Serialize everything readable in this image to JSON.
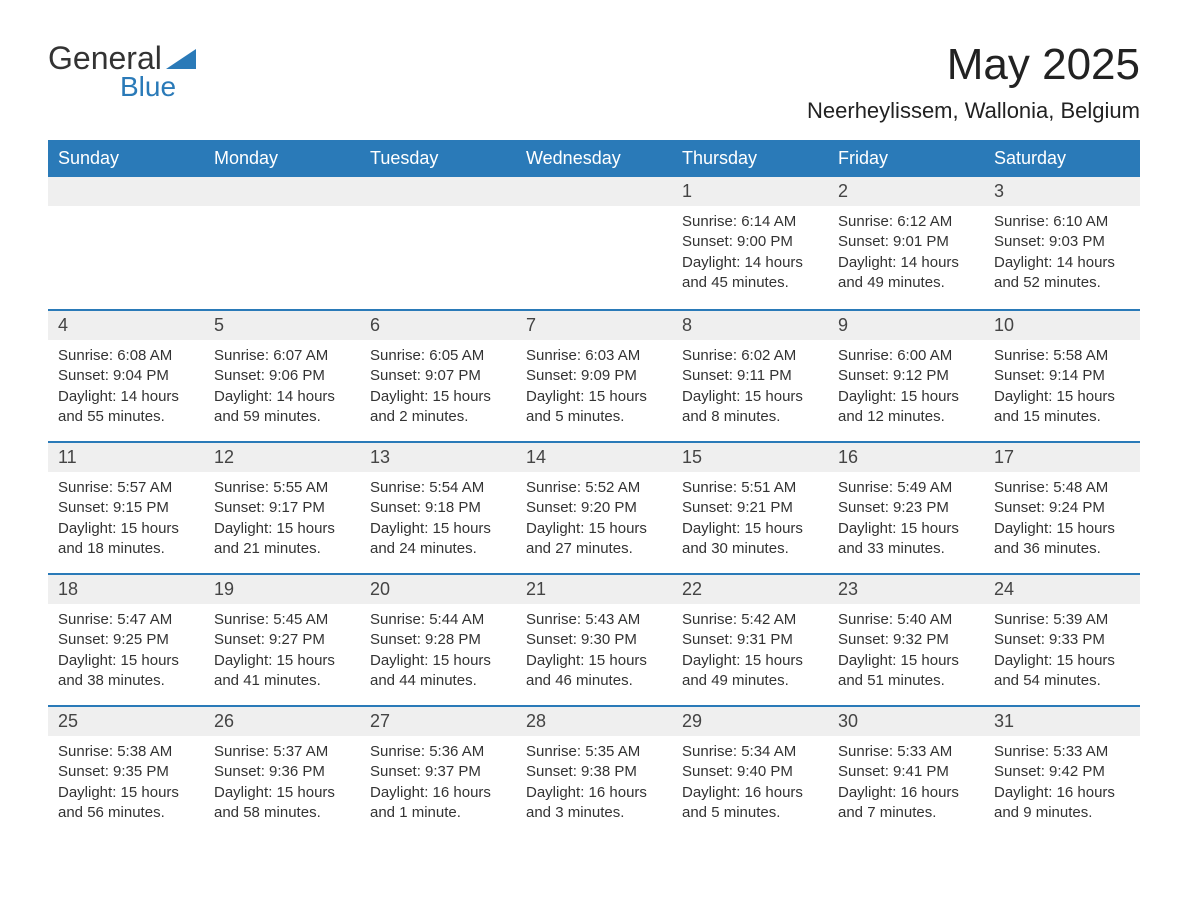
{
  "brand": {
    "part1": "General",
    "part2": "Blue",
    "accent_color": "#2a7ab8"
  },
  "title": "May 2025",
  "location": "Neerheylissem, Wallonia, Belgium",
  "header_bg": "#2a7ab8",
  "header_fg": "#ffffff",
  "daybar_bg": "#efefef",
  "daybar_border": "#2a7ab8",
  "text_color": "#333333",
  "background_color": "#ffffff",
  "font_family": "Arial, Helvetica, sans-serif",
  "title_fontsize": 44,
  "location_fontsize": 22,
  "weekday_fontsize": 18,
  "daynum_fontsize": 18,
  "body_fontsize": 15,
  "columns": [
    "Sunday",
    "Monday",
    "Tuesday",
    "Wednesday",
    "Thursday",
    "Friday",
    "Saturday"
  ],
  "weeks": [
    [
      null,
      null,
      null,
      null,
      {
        "n": "1",
        "sunrise": "Sunrise: 6:14 AM",
        "sunset": "Sunset: 9:00 PM",
        "daylight": "Daylight: 14 hours and 45 minutes."
      },
      {
        "n": "2",
        "sunrise": "Sunrise: 6:12 AM",
        "sunset": "Sunset: 9:01 PM",
        "daylight": "Daylight: 14 hours and 49 minutes."
      },
      {
        "n": "3",
        "sunrise": "Sunrise: 6:10 AM",
        "sunset": "Sunset: 9:03 PM",
        "daylight": "Daylight: 14 hours and 52 minutes."
      }
    ],
    [
      {
        "n": "4",
        "sunrise": "Sunrise: 6:08 AM",
        "sunset": "Sunset: 9:04 PM",
        "daylight": "Daylight: 14 hours and 55 minutes."
      },
      {
        "n": "5",
        "sunrise": "Sunrise: 6:07 AM",
        "sunset": "Sunset: 9:06 PM",
        "daylight": "Daylight: 14 hours and 59 minutes."
      },
      {
        "n": "6",
        "sunrise": "Sunrise: 6:05 AM",
        "sunset": "Sunset: 9:07 PM",
        "daylight": "Daylight: 15 hours and 2 minutes."
      },
      {
        "n": "7",
        "sunrise": "Sunrise: 6:03 AM",
        "sunset": "Sunset: 9:09 PM",
        "daylight": "Daylight: 15 hours and 5 minutes."
      },
      {
        "n": "8",
        "sunrise": "Sunrise: 6:02 AM",
        "sunset": "Sunset: 9:11 PM",
        "daylight": "Daylight: 15 hours and 8 minutes."
      },
      {
        "n": "9",
        "sunrise": "Sunrise: 6:00 AM",
        "sunset": "Sunset: 9:12 PM",
        "daylight": "Daylight: 15 hours and 12 minutes."
      },
      {
        "n": "10",
        "sunrise": "Sunrise: 5:58 AM",
        "sunset": "Sunset: 9:14 PM",
        "daylight": "Daylight: 15 hours and 15 minutes."
      }
    ],
    [
      {
        "n": "11",
        "sunrise": "Sunrise: 5:57 AM",
        "sunset": "Sunset: 9:15 PM",
        "daylight": "Daylight: 15 hours and 18 minutes."
      },
      {
        "n": "12",
        "sunrise": "Sunrise: 5:55 AM",
        "sunset": "Sunset: 9:17 PM",
        "daylight": "Daylight: 15 hours and 21 minutes."
      },
      {
        "n": "13",
        "sunrise": "Sunrise: 5:54 AM",
        "sunset": "Sunset: 9:18 PM",
        "daylight": "Daylight: 15 hours and 24 minutes."
      },
      {
        "n": "14",
        "sunrise": "Sunrise: 5:52 AM",
        "sunset": "Sunset: 9:20 PM",
        "daylight": "Daylight: 15 hours and 27 minutes."
      },
      {
        "n": "15",
        "sunrise": "Sunrise: 5:51 AM",
        "sunset": "Sunset: 9:21 PM",
        "daylight": "Daylight: 15 hours and 30 minutes."
      },
      {
        "n": "16",
        "sunrise": "Sunrise: 5:49 AM",
        "sunset": "Sunset: 9:23 PM",
        "daylight": "Daylight: 15 hours and 33 minutes."
      },
      {
        "n": "17",
        "sunrise": "Sunrise: 5:48 AM",
        "sunset": "Sunset: 9:24 PM",
        "daylight": "Daylight: 15 hours and 36 minutes."
      }
    ],
    [
      {
        "n": "18",
        "sunrise": "Sunrise: 5:47 AM",
        "sunset": "Sunset: 9:25 PM",
        "daylight": "Daylight: 15 hours and 38 minutes."
      },
      {
        "n": "19",
        "sunrise": "Sunrise: 5:45 AM",
        "sunset": "Sunset: 9:27 PM",
        "daylight": "Daylight: 15 hours and 41 minutes."
      },
      {
        "n": "20",
        "sunrise": "Sunrise: 5:44 AM",
        "sunset": "Sunset: 9:28 PM",
        "daylight": "Daylight: 15 hours and 44 minutes."
      },
      {
        "n": "21",
        "sunrise": "Sunrise: 5:43 AM",
        "sunset": "Sunset: 9:30 PM",
        "daylight": "Daylight: 15 hours and 46 minutes."
      },
      {
        "n": "22",
        "sunrise": "Sunrise: 5:42 AM",
        "sunset": "Sunset: 9:31 PM",
        "daylight": "Daylight: 15 hours and 49 minutes."
      },
      {
        "n": "23",
        "sunrise": "Sunrise: 5:40 AM",
        "sunset": "Sunset: 9:32 PM",
        "daylight": "Daylight: 15 hours and 51 minutes."
      },
      {
        "n": "24",
        "sunrise": "Sunrise: 5:39 AM",
        "sunset": "Sunset: 9:33 PM",
        "daylight": "Daylight: 15 hours and 54 minutes."
      }
    ],
    [
      {
        "n": "25",
        "sunrise": "Sunrise: 5:38 AM",
        "sunset": "Sunset: 9:35 PM",
        "daylight": "Daylight: 15 hours and 56 minutes."
      },
      {
        "n": "26",
        "sunrise": "Sunrise: 5:37 AM",
        "sunset": "Sunset: 9:36 PM",
        "daylight": "Daylight: 15 hours and 58 minutes."
      },
      {
        "n": "27",
        "sunrise": "Sunrise: 5:36 AM",
        "sunset": "Sunset: 9:37 PM",
        "daylight": "Daylight: 16 hours and 1 minute."
      },
      {
        "n": "28",
        "sunrise": "Sunrise: 5:35 AM",
        "sunset": "Sunset: 9:38 PM",
        "daylight": "Daylight: 16 hours and 3 minutes."
      },
      {
        "n": "29",
        "sunrise": "Sunrise: 5:34 AM",
        "sunset": "Sunset: 9:40 PM",
        "daylight": "Daylight: 16 hours and 5 minutes."
      },
      {
        "n": "30",
        "sunrise": "Sunrise: 5:33 AM",
        "sunset": "Sunset: 9:41 PM",
        "daylight": "Daylight: 16 hours and 7 minutes."
      },
      {
        "n": "31",
        "sunrise": "Sunrise: 5:33 AM",
        "sunset": "Sunset: 9:42 PM",
        "daylight": "Daylight: 16 hours and 9 minutes."
      }
    ]
  ]
}
